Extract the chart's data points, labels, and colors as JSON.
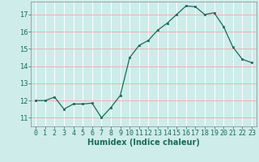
{
  "x": [
    0,
    1,
    2,
    3,
    4,
    5,
    6,
    7,
    8,
    9,
    10,
    11,
    12,
    13,
    14,
    15,
    16,
    17,
    18,
    19,
    20,
    21,
    22,
    23
  ],
  "y": [
    12.0,
    12.0,
    12.2,
    11.5,
    11.8,
    11.8,
    11.85,
    11.0,
    11.6,
    12.3,
    14.5,
    15.2,
    15.5,
    16.1,
    16.5,
    17.0,
    17.5,
    17.45,
    17.0,
    17.1,
    16.3,
    15.1,
    14.4,
    14.2
  ],
  "xlabel": "Humidex (Indice chaleur)",
  "xlim": [
    -0.5,
    23.5
  ],
  "ylim": [
    10.5,
    17.75
  ],
  "yticks": [
    11,
    12,
    13,
    14,
    15,
    16,
    17
  ],
  "xticks": [
    0,
    1,
    2,
    3,
    4,
    5,
    6,
    7,
    8,
    9,
    10,
    11,
    12,
    13,
    14,
    15,
    16,
    17,
    18,
    19,
    20,
    21,
    22,
    23
  ],
  "line_color": "#1a6b5a",
  "marker_color": "#1a6b5a",
  "bg_color": "#ceecea",
  "grid_color": "#ffffff",
  "tick_color": "#1a6b5a",
  "label_fontsize": 7,
  "tick_fontsize": 6
}
